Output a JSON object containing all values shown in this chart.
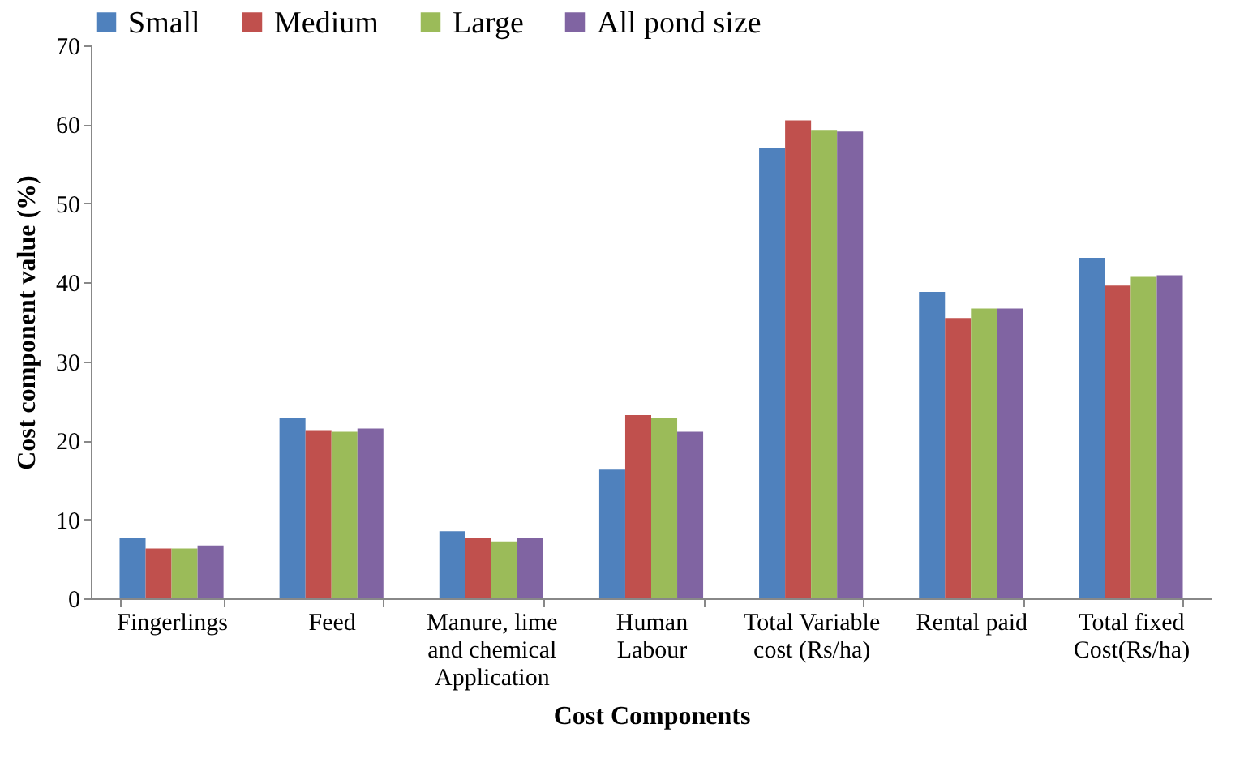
{
  "chart_data": {
    "type": "bar",
    "xlabel": "Cost Components",
    "ylabel": "Cost component value (%)",
    "categories": [
      "Fingerlings",
      "Feed",
      "Manure, lime and chemical Application",
      "Human Labour",
      "Total Variable cost (Rs/ha)",
      "Rental paid",
      "Total fixed Cost(Rs/ha)"
    ],
    "series": [
      {
        "name": "Small",
        "color": "#4f81bd",
        "values": [
          7.6,
          22.8,
          8.5,
          16.3,
          57.0,
          38.8,
          43.1
        ]
      },
      {
        "name": "Medium",
        "color": "#c0504d",
        "values": [
          6.3,
          21.3,
          7.6,
          23.2,
          60.5,
          35.5,
          39.6
        ]
      },
      {
        "name": "Large",
        "color": "#9bbb59",
        "values": [
          6.3,
          21.1,
          7.2,
          22.8,
          59.3,
          36.7,
          40.7
        ]
      },
      {
        "name": "All pond size",
        "color": "#8064a2",
        "values": [
          6.7,
          21.5,
          7.6,
          21.1,
          59.1,
          36.7,
          40.9
        ]
      }
    ],
    "ylim": [
      0,
      70
    ],
    "yticks": [
      0,
      10,
      20,
      30,
      40,
      50,
      60,
      70
    ],
    "grid": false,
    "legend": "top"
  }
}
